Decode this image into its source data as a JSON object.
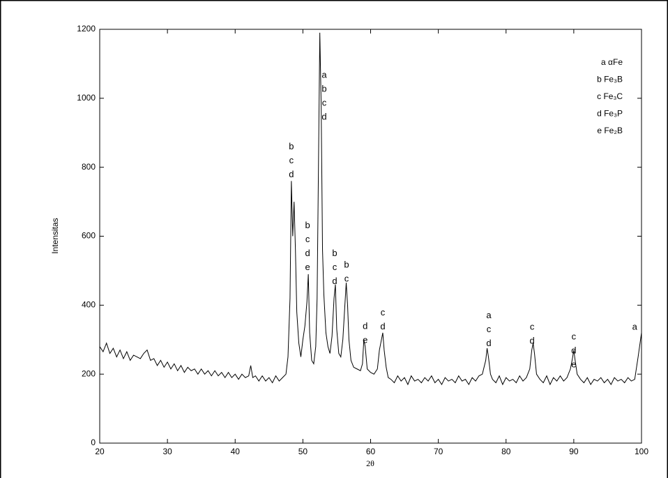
{
  "chart_data": {
    "type": "line",
    "x_label": "2θ",
    "y_label": "Intensitas",
    "xlim": [
      20,
      100
    ],
    "xticks": [
      20,
      30,
      40,
      50,
      60,
      70,
      80,
      90,
      100
    ],
    "ylim": [
      0,
      1200
    ],
    "yticks": [
      0,
      200,
      400,
      600,
      800,
      1000,
      1200
    ],
    "x": [
      20,
      20.5,
      21,
      21.5,
      22,
      22.5,
      23,
      23.5,
      24,
      24.5,
      25,
      25.5,
      26,
      26.5,
      27,
      27.5,
      28,
      28.5,
      29,
      29.5,
      30,
      30.5,
      31,
      31.5,
      32,
      32.5,
      33,
      33.5,
      34,
      34.5,
      35,
      35.5,
      36,
      36.5,
      37,
      37.5,
      38,
      38.5,
      39,
      39.5,
      40,
      40.5,
      41,
      41.5,
      42,
      42.3,
      42.6,
      43,
      43.5,
      44,
      44.5,
      45,
      45.5,
      46,
      46.5,
      47,
      47.5,
      47.8,
      48.1,
      48.3,
      48.5,
      48.7,
      48.9,
      49.1,
      49.4,
      49.7,
      50,
      50.3,
      50.6,
      50.8,
      51,
      51.3,
      51.6,
      51.9,
      52.1,
      52.3,
      52.5,
      52.7,
      52.9,
      53.1,
      53.4,
      53.7,
      54,
      54.3,
      54.6,
      54.8,
      55,
      55.3,
      55.6,
      55.9,
      56.2,
      56.4,
      56.6,
      56.8,
      57.1,
      57.5,
      58,
      58.5,
      58.8,
      59,
      59.2,
      59.5,
      60,
      60.5,
      61,
      61.3,
      61.5,
      61.8,
      62,
      62.3,
      62.6,
      63,
      63.5,
      64,
      64.5,
      65,
      65.5,
      66,
      66.5,
      67,
      67.5,
      68,
      68.5,
      69,
      69.5,
      70,
      70.5,
      71,
      71.5,
      72,
      72.5,
      73,
      73.5,
      74,
      74.5,
      75,
      75.5,
      76,
      76.5,
      77,
      77.2,
      77.4,
      77.7,
      78,
      78.5,
      79,
      79.5,
      80,
      80.5,
      81,
      81.5,
      82,
      82.5,
      83,
      83.5,
      83.8,
      84,
      84.2,
      84.5,
      85,
      85.5,
      86,
      86.5,
      87,
      87.5,
      88,
      88.5,
      89,
      89.5,
      89.8,
      90,
      90.2,
      90.5,
      91,
      91.5,
      92,
      92.5,
      93,
      93.5,
      94,
      94.5,
      95,
      95.5,
      96,
      96.5,
      97,
      97.5,
      98,
      98.5,
      99,
      99.5,
      100
    ],
    "series": [
      {
        "color": "#000000",
        "values": [
          280,
          265,
          290,
          260,
          275,
          250,
          270,
          245,
          265,
          240,
          255,
          250,
          245,
          260,
          270,
          240,
          245,
          225,
          240,
          220,
          235,
          215,
          230,
          210,
          225,
          205,
          220,
          210,
          215,
          200,
          215,
          200,
          210,
          195,
          210,
          195,
          205,
          190,
          205,
          190,
          200,
          185,
          200,
          190,
          195,
          225,
          190,
          195,
          180,
          195,
          180,
          190,
          175,
          195,
          180,
          190,
          200,
          250,
          420,
          760,
          600,
          700,
          560,
          380,
          290,
          250,
          300,
          340,
          410,
          490,
          320,
          240,
          230,
          280,
          420,
          800,
          1190,
          980,
          560,
          430,
          320,
          280,
          260,
          310,
          420,
          460,
          330,
          260,
          250,
          300,
          400,
          465,
          400,
          300,
          240,
          220,
          215,
          210,
          230,
          300,
          280,
          215,
          205,
          200,
          215,
          270,
          290,
          320,
          270,
          220,
          190,
          185,
          175,
          195,
          180,
          190,
          170,
          195,
          180,
          185,
          175,
          190,
          180,
          195,
          175,
          185,
          170,
          190,
          180,
          185,
          175,
          195,
          180,
          185,
          170,
          190,
          180,
          195,
          200,
          240,
          275,
          250,
          200,
          185,
          175,
          195,
          170,
          190,
          180,
          185,
          175,
          195,
          180,
          190,
          215,
          270,
          290,
          260,
          200,
          185,
          175,
          195,
          170,
          190,
          180,
          195,
          180,
          190,
          215,
          245,
          270,
          240,
          200,
          185,
          175,
          190,
          170,
          185,
          180,
          190,
          175,
          185,
          170,
          190,
          180,
          185,
          175,
          190,
          180,
          185,
          250,
          320
        ]
      }
    ],
    "annotations": [
      {
        "x": 48.3,
        "y": 875,
        "labels": [
          "b",
          "c",
          "d"
        ]
      },
      {
        "x": 53.15,
        "y": 1083,
        "labels": [
          "a",
          "b",
          "c",
          "d"
        ]
      },
      {
        "x": 50.7,
        "y": 646,
        "labels": [
          "b",
          "c",
          "d",
          "e"
        ]
      },
      {
        "x": 54.7,
        "y": 565,
        "labels": [
          "b",
          "c",
          "d"
        ]
      },
      {
        "x": 56.45,
        "y": 532,
        "labels": [
          "b",
          "c"
        ]
      },
      {
        "x": 59.2,
        "y": 354,
        "labels": [
          "d",
          "e"
        ]
      },
      {
        "x": 61.8,
        "y": 393,
        "labels": [
          "c",
          "d"
        ]
      },
      {
        "x": 77.45,
        "y": 385,
        "labels": [
          "a",
          "c",
          "d"
        ]
      },
      {
        "x": 83.85,
        "y": 352,
        "labels": [
          "c",
          "d"
        ]
      },
      {
        "x": 90.0,
        "y": 324,
        "labels": [
          "c",
          "d",
          "e"
        ]
      },
      {
        "x": 99.0,
        "y": 352,
        "labels": [
          "a"
        ]
      }
    ],
    "legend_text": [
      "a αFe",
      "b Fe₃B",
      "c Fe₃C",
      "d Fe₃P",
      "e Fe₂B"
    ]
  }
}
